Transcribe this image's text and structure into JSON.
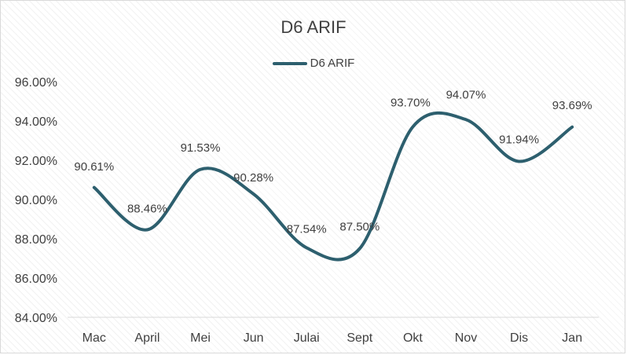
{
  "chart_data": {
    "type": "line",
    "title": "D6 ARIF",
    "categories": [
      "Mac",
      "April",
      "Mei",
      "Jun",
      "Julai",
      "Sept",
      "Okt",
      "Nov",
      "Dis",
      "Jan"
    ],
    "series": [
      {
        "name": "D6 ARIF",
        "values": [
          90.61,
          88.46,
          91.53,
          90.28,
          87.54,
          87.5,
          93.7,
          94.07,
          91.94,
          93.69
        ],
        "labels": [
          "90.61%",
          "88.46%",
          "91.53%",
          "90.28%",
          "87.54%",
          "87.50%",
          "93.70%",
          "94.07%",
          "91.94%",
          "93.69%"
        ],
        "color": "#2d5f6e"
      }
    ],
    "ylim": [
      84,
      96
    ],
    "yticks": [
      84,
      86,
      88,
      90,
      92,
      94,
      96
    ],
    "ytick_labels": [
      "84.00%",
      "86.00%",
      "88.00%",
      "90.00%",
      "92.00%",
      "94.00%",
      "96.00%"
    ],
    "xlabel": "",
    "ylabel": "",
    "legend_position": "top",
    "smooth": true,
    "grid": false
  }
}
